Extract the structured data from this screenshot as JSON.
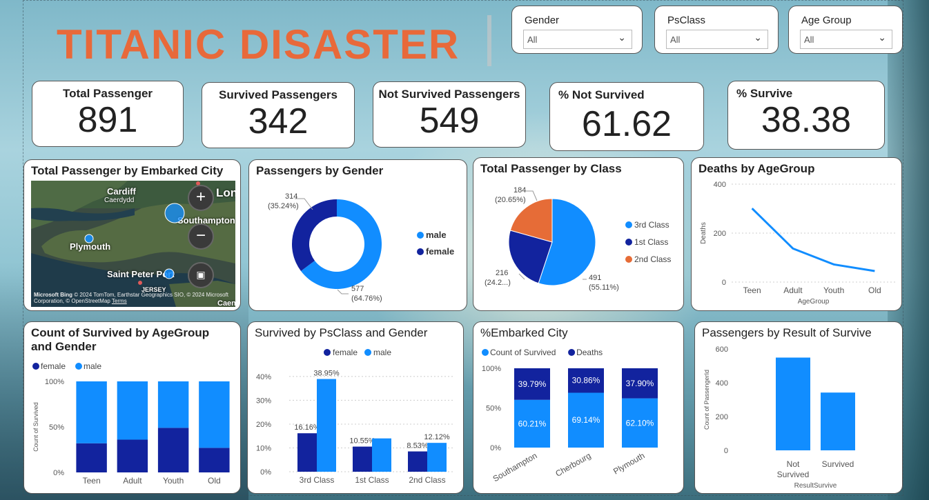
{
  "header": {
    "title": "TITANIC DISASTER"
  },
  "slicers": [
    {
      "label": "Gender",
      "value": "All"
    },
    {
      "label": "PsClass",
      "value": "All"
    },
    {
      "label": "Age Group",
      "value": "All"
    }
  ],
  "kpis": [
    {
      "label": "Total Passenger",
      "value": "891"
    },
    {
      "label": "Survived Passengers",
      "value": "342"
    },
    {
      "label": "Not Survived Passengers",
      "value": "549"
    },
    {
      "label": "% Not Survived",
      "value": "61.62"
    },
    {
      "label": "% Survive",
      "value": "38.38"
    }
  ],
  "map": {
    "title": "Total Passenger by Embarked City",
    "labels": {
      "cardiff": "Cardiff",
      "caerdydd": "Caerdydd",
      "london": "London",
      "southampton": "Southampton",
      "plymouth": "Plymouth",
      "saint_peter_port": "Saint Peter Port",
      "jersey": "JERSEY",
      "caen": "Caen"
    },
    "zoom_in": "+",
    "zoom_out": "−",
    "attribution": "© 2024 TomTom, Earthstar Geographics SIO, © 2024 Microsoft Corporation, © OpenStreetMap",
    "terms": "Terms",
    "bing": "Microsoft Bing"
  },
  "chart_data": [
    {
      "type": "pie",
      "variant": "donut",
      "title": "Passengers by Gender",
      "categories": [
        "male",
        "female"
      ],
      "values": [
        577,
        314
      ],
      "percent_labels": [
        "(64.76%)",
        "(35.24%)"
      ],
      "colors": [
        "#118dff",
        "#12239e"
      ],
      "legend": "right"
    },
    {
      "type": "pie",
      "title": "Total Passenger by Class",
      "categories": [
        "3rd Class",
        "1st Class",
        "2nd Class"
      ],
      "values": [
        491,
        216,
        184
      ],
      "percent_labels": [
        "(55.11%)",
        "(24.2...)",
        "(20.65%)"
      ],
      "colors": [
        "#118dff",
        "#12239e",
        "#e66c37"
      ],
      "legend": "right"
    },
    {
      "type": "line",
      "title": "Deaths by AgeGroup",
      "categories": [
        "Teen",
        "Adult",
        "Youth",
        "Old"
      ],
      "series": [
        {
          "values": [
            301,
            137,
            72,
            45
          ]
        }
      ],
      "xlabel": "AgeGroup",
      "ylabel": "Deaths",
      "ylim": [
        0,
        400
      ],
      "yticks": [
        "0",
        "200",
        "400"
      ],
      "grid": true,
      "color": "#118dff"
    },
    {
      "type": "bar",
      "stacked": "percent",
      "title": "Count of Survived by AgeGroup and Gender",
      "categories": [
        "Teen",
        "Adult",
        "Youth",
        "Old"
      ],
      "series": [
        {
          "name": "female",
          "values": [
            32,
            36,
            49,
            27
          ],
          "color": "#12239e"
        },
        {
          "name": "male",
          "values": [
            68,
            64,
            51,
            73
          ],
          "color": "#118dff"
        }
      ],
      "ylabel": "Count of Survived",
      "yticks": [
        "0%",
        "50%",
        "100%"
      ],
      "legend": "top-left"
    },
    {
      "type": "bar",
      "title": "Survived by PsClass and Gender",
      "categories": [
        "3rd Class",
        "1st Class",
        "2nd Class"
      ],
      "series": [
        {
          "name": "female",
          "values": [
            16.16,
            10.55,
            8.53
          ],
          "labels": [
            "16.16%",
            "10.55%",
            "8.53%"
          ],
          "color": "#12239e"
        },
        {
          "name": "male",
          "values": [
            38.95,
            14.0,
            12.12
          ],
          "labels": [
            "38.95%",
            "",
            "12.12%"
          ],
          "color": "#118dff"
        }
      ],
      "yticks": [
        "0%",
        "10%",
        "20%",
        "30%",
        "40%"
      ],
      "ylim": [
        0,
        42
      ],
      "legend": "top-center"
    },
    {
      "type": "bar",
      "stacked": "percent",
      "title": "%Embarked City",
      "categories": [
        "Southampton",
        "Cherbourg",
        "Plymouth"
      ],
      "series": [
        {
          "name": "Count of Survived",
          "values": [
            60.21,
            69.14,
            62.1
          ],
          "labels": [
            "60.21%",
            "69.14%",
            "62.10%"
          ],
          "color": "#118dff"
        },
        {
          "name": "Deaths",
          "values": [
            39.79,
            30.86,
            37.9
          ],
          "labels": [
            "39.79%",
            "30.86%",
            "37.90%"
          ],
          "color": "#12239e"
        }
      ],
      "yticks": [
        "0%",
        "50%",
        "100%"
      ],
      "legend": "top-left"
    },
    {
      "type": "bar",
      "title": "Passengers by Result of Survive",
      "categories": [
        "Not Survived",
        "Survived"
      ],
      "values": [
        549,
        342
      ],
      "xlabel": "ResultSurvive",
      "ylabel": "Count of PassengerId",
      "ylim": [
        0,
        600
      ],
      "yticks": [
        "0",
        "200",
        "400",
        "600"
      ],
      "color": "#118dff"
    }
  ]
}
